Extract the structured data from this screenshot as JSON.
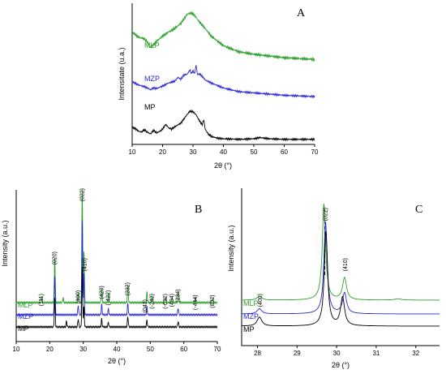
{
  "chart_data": [
    {
      "panel": "A",
      "type": "line",
      "xlabel": "2θ (°)",
      "ylabel": "Intensitate (u.a.)",
      "xlim": [
        10,
        70
      ],
      "xticks": [
        10,
        20,
        30,
        40,
        50,
        60,
        70
      ],
      "grid": false,
      "y_ticks_shown": false,
      "series": [
        {
          "name": "MLP",
          "color": "#2ca02c",
          "points": [
            [
              10,
              0.78
            ],
            [
              12,
              0.72
            ],
            [
              14,
              0.7
            ],
            [
              15,
              0.66
            ],
            [
              16,
              0.6
            ],
            [
              17,
              0.63
            ],
            [
              18,
              0.67
            ],
            [
              20,
              0.73
            ],
            [
              22,
              0.78
            ],
            [
              24,
              0.82
            ],
            [
              26,
              0.88
            ],
            [
              27,
              0.93
            ],
            [
              28,
              0.98
            ],
            [
              29,
              1.0
            ],
            [
              30,
              0.99
            ],
            [
              31,
              0.95
            ],
            [
              32,
              0.9
            ],
            [
              34,
              0.82
            ],
            [
              36,
              0.73
            ],
            [
              40,
              0.62
            ],
            [
              45,
              0.55
            ],
            [
              50,
              0.52
            ],
            [
              55,
              0.5
            ],
            [
              60,
              0.48
            ],
            [
              65,
              0.47
            ],
            [
              70,
              0.46
            ]
          ]
        },
        {
          "name": "MZP",
          "color": "#2a2ad6",
          "points": [
            [
              10,
              0.49
            ],
            [
              12,
              0.44
            ],
            [
              14,
              0.41
            ],
            [
              15,
              0.39
            ],
            [
              16,
              0.36
            ],
            [
              17,
              0.39
            ],
            [
              18,
              0.38
            ],
            [
              20,
              0.42
            ],
            [
              22,
              0.47
            ],
            [
              24,
              0.5
            ],
            [
              25,
              0.56
            ],
            [
              26,
              0.53
            ],
            [
              27,
              0.6
            ],
            [
              28,
              0.61
            ],
            [
              29,
              0.68
            ],
            [
              29.5,
              0.62
            ],
            [
              30,
              0.67
            ],
            [
              30.5,
              0.62
            ],
            [
              31,
              0.76
            ],
            [
              31.5,
              0.6
            ],
            [
              32,
              0.62
            ],
            [
              33,
              0.58
            ],
            [
              34,
              0.52
            ],
            [
              36,
              0.47
            ],
            [
              40,
              0.39
            ],
            [
              45,
              0.33
            ],
            [
              50,
              0.31
            ],
            [
              55,
              0.29
            ],
            [
              60,
              0.27
            ],
            [
              65,
              0.26
            ],
            [
              70,
              0.25
            ]
          ]
        },
        {
          "name": "MP",
          "color": "#000000",
          "points": [
            [
              10,
              0.23
            ],
            [
              11,
              0.21
            ],
            [
              12,
              0.17
            ],
            [
              13,
              0.15
            ],
            [
              14,
              0.19
            ],
            [
              15,
              0.15
            ],
            [
              16,
              0.12
            ],
            [
              17,
              0.18
            ],
            [
              18,
              0.14
            ],
            [
              19,
              0.16
            ],
            [
              20,
              0.2
            ],
            [
              21,
              0.28
            ],
            [
              22,
              0.22
            ],
            [
              23,
              0.2
            ],
            [
              24,
              0.24
            ],
            [
              25,
              0.27
            ],
            [
              26,
              0.3
            ],
            [
              27,
              0.37
            ],
            [
              28,
              0.44
            ],
            [
              29,
              0.5
            ],
            [
              30,
              0.49
            ],
            [
              31,
              0.44
            ],
            [
              32,
              0.35
            ],
            [
              33,
              0.27
            ],
            [
              33.5,
              0.36
            ],
            [
              34,
              0.2
            ],
            [
              35,
              0.12
            ],
            [
              36,
              0.08
            ],
            [
              38,
              0.05
            ],
            [
              40,
              0.04
            ],
            [
              45,
              0.03
            ],
            [
              50,
              0.04
            ],
            [
              52,
              0.06
            ],
            [
              55,
              0.04
            ],
            [
              60,
              0.03
            ],
            [
              65,
              0.03
            ],
            [
              70,
              0.03
            ]
          ]
        }
      ]
    },
    {
      "panel": "B",
      "type": "line",
      "xlabel": "2θ (°)",
      "ylabel": "Intensity (a.u.)",
      "xlim": [
        10,
        70
      ],
      "xticks": [
        10,
        20,
        30,
        40,
        50,
        60,
        70
      ],
      "grid": false,
      "y_ticks_shown": false,
      "peak_labels": [
        {
          "label": "(111)",
          "x": 17.5
        },
        {
          "label": "(020)",
          "x": 21.5
        },
        {
          "label": "(400)",
          "x": 28.5
        },
        {
          "label": "(022)",
          "x": 29.7
        },
        {
          "label": "(410)",
          "x": 30.5
        },
        {
          "label": "(420)",
          "x": 35.5
        },
        {
          "label": "(-422)",
          "x": 37.5
        },
        {
          "label": "(232)",
          "x": 43.3
        },
        {
          "label": "(042)",
          "x": 48.5
        },
        {
          "label": "(-242)",
          "x": 50.5
        },
        {
          "label": "(-632)",
          "x": 54.5
        },
        {
          "label": "(404)",
          "x": 56.5
        },
        {
          "label": "(234)",
          "x": 58.3
        },
        {
          "label": "(-444)",
          "x": 63.5
        },
        {
          "label": "(802)",
          "x": 68.5
        }
      ],
      "series": [
        {
          "name": "MLP",
          "color": "#2ca02c",
          "peaks": [
            [
              17.5,
              0.05
            ],
            [
              21.5,
              0.4
            ],
            [
              24.0,
              0.04
            ],
            [
              28.5,
              0.08
            ],
            [
              29.7,
              1.0
            ],
            [
              30.2,
              0.45
            ],
            [
              35.5,
              0.12
            ],
            [
              37.5,
              0.08
            ],
            [
              43.3,
              0.15
            ],
            [
              49.0,
              0.09
            ],
            [
              50.5,
              0.05
            ],
            [
              54.5,
              0.05
            ],
            [
              56.5,
              0.05
            ],
            [
              58.3,
              0.09
            ],
            [
              63.5,
              0.04
            ],
            [
              68.5,
              0.04
            ]
          ]
        },
        {
          "name": "MZP",
          "color": "#2a2ad6",
          "peaks": [
            [
              21.5,
              0.34
            ],
            [
              28.5,
              0.08
            ],
            [
              29.7,
              0.83
            ],
            [
              30.2,
              0.36
            ],
            [
              35.5,
              0.09
            ],
            [
              37.5,
              0.05
            ],
            [
              43.3,
              0.1
            ],
            [
              49.0,
              0.07
            ],
            [
              58.3,
              0.06
            ]
          ]
        },
        {
          "name": "MP",
          "color": "#000000",
          "peaks": [
            [
              21.5,
              0.25
            ],
            [
              25.0,
              0.05
            ],
            [
              28.5,
              0.07
            ],
            [
              29.7,
              0.52
            ],
            [
              30.2,
              0.17
            ],
            [
              35.5,
              0.07
            ],
            [
              37.5,
              0.04
            ],
            [
              43.3,
              0.09
            ],
            [
              49.0,
              0.06
            ],
            [
              58.3,
              0.05
            ]
          ]
        }
      ]
    },
    {
      "panel": "C",
      "type": "line",
      "xlabel": "2θ (°)",
      "ylabel": "Intensity (a.u.)",
      "xlim": [
        27.6,
        32.6
      ],
      "xticks": [
        28,
        29,
        30,
        31,
        32
      ],
      "grid": false,
      "y_ticks_shown": false,
      "dashed_reference_x": 29.7,
      "peak_labels": [
        {
          "label": "(400)",
          "x": 28.05
        },
        {
          "label": "(022)",
          "x": 29.7
        },
        {
          "label": "(410)",
          "x": 30.2
        }
      ],
      "series": [
        {
          "name": "MLP",
          "color": "#2ca02c",
          "peaks": [
            [
              28.05,
              0.03,
              0.14
            ],
            [
              29.68,
              0.74,
              0.1
            ],
            [
              30.2,
              0.17,
              0.12
            ],
            [
              31.55,
              0.01,
              0.2
            ]
          ]
        },
        {
          "name": "MZP",
          "color": "#2a2ad6",
          "peaks": [
            [
              28.05,
              0.04,
              0.14
            ],
            [
              29.72,
              0.71,
              0.1
            ],
            [
              30.2,
              0.16,
              0.12
            ]
          ]
        },
        {
          "name": "MP",
          "color": "#000000",
          "peaks": [
            [
              28.05,
              0.07,
              0.14
            ],
            [
              29.73,
              0.73,
              0.1
            ],
            [
              30.15,
              0.22,
              0.12
            ]
          ]
        }
      ]
    }
  ]
}
